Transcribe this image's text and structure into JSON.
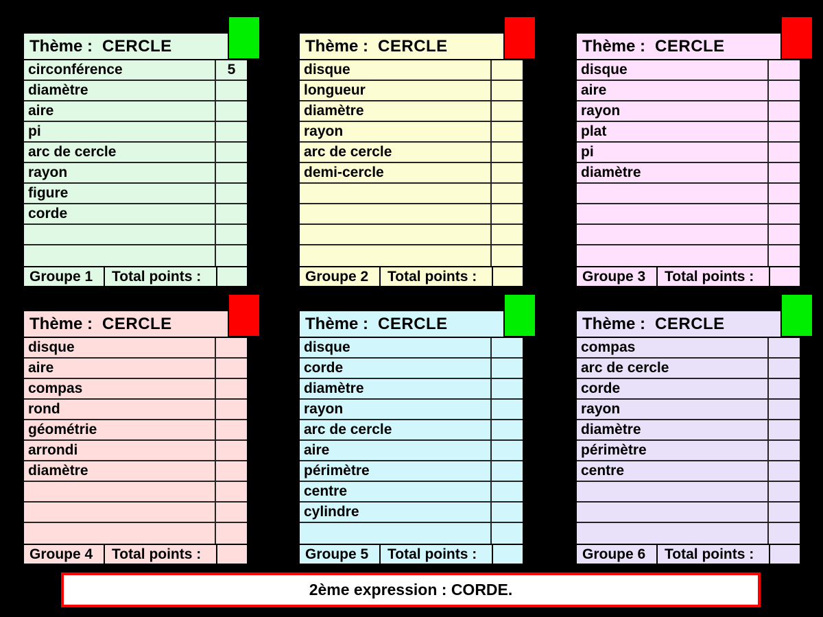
{
  "banner": {
    "text": "2ème expression : CORDE."
  },
  "colors": {
    "background": "#000000",
    "banner_bg": "#FFFFFF",
    "banner_border": "#FF0000",
    "green_indicator": "#00EE00",
    "red_indicator": "#FF0000"
  },
  "cards": [
    {
      "theme_label": "Thème :",
      "theme_value": "CERCLE",
      "group_label": "Groupe 1",
      "total_label": "Total points :",
      "total_value": "",
      "indicator": "green",
      "bg": "#E0F9E4",
      "rows": [
        {
          "word": "circonférence",
          "points": "5"
        },
        {
          "word": "diamètre",
          "points": ""
        },
        {
          "word": "aire",
          "points": ""
        },
        {
          "word": "pi",
          "points": ""
        },
        {
          "word": "arc de cercle",
          "points": ""
        },
        {
          "word": "rayon",
          "points": ""
        },
        {
          "word": "figure",
          "points": ""
        },
        {
          "word": "corde",
          "points": ""
        },
        {
          "word": "",
          "points": ""
        },
        {
          "word": "",
          "points": ""
        }
      ]
    },
    {
      "theme_label": "Thème :",
      "theme_value": "CERCLE",
      "group_label": "Groupe 2",
      "total_label": "Total points :",
      "total_value": "",
      "indicator": "red",
      "bg": "#FDFDD4",
      "rows": [
        {
          "word": "disque",
          "points": ""
        },
        {
          "word": "longueur",
          "points": ""
        },
        {
          "word": "diamètre",
          "points": ""
        },
        {
          "word": "rayon",
          "points": ""
        },
        {
          "word": "arc de cercle",
          "points": ""
        },
        {
          "word": "demi-cercle",
          "points": ""
        },
        {
          "word": "",
          "points": ""
        },
        {
          "word": "",
          "points": ""
        },
        {
          "word": "",
          "points": ""
        },
        {
          "word": "",
          "points": ""
        }
      ]
    },
    {
      "theme_label": "Thème :",
      "theme_value": "CERCLE",
      "group_label": "Groupe 3",
      "total_label": "Total points :",
      "total_value": "",
      "indicator": "red",
      "bg": "#FFE0FD",
      "rows": [
        {
          "word": "disque",
          "points": ""
        },
        {
          "word": "aire",
          "points": ""
        },
        {
          "word": "rayon",
          "points": ""
        },
        {
          "word": "plat",
          "points": ""
        },
        {
          "word": "pi",
          "points": ""
        },
        {
          "word": "diamètre",
          "points": ""
        },
        {
          "word": "",
          "points": ""
        },
        {
          "word": "",
          "points": ""
        },
        {
          "word": "",
          "points": ""
        },
        {
          "word": "",
          "points": ""
        }
      ]
    },
    {
      "theme_label": "Thème :",
      "theme_value": "CERCLE",
      "group_label": "Groupe 4",
      "total_label": "Total points :",
      "total_value": "",
      "indicator": "red",
      "bg": "#FFDDDD",
      "rows": [
        {
          "word": "disque",
          "points": ""
        },
        {
          "word": "aire",
          "points": ""
        },
        {
          "word": "compas",
          "points": ""
        },
        {
          "word": "rond",
          "points": ""
        },
        {
          "word": "géométrie",
          "points": ""
        },
        {
          "word": "arrondi",
          "points": ""
        },
        {
          "word": "diamètre",
          "points": ""
        },
        {
          "word": "",
          "points": ""
        },
        {
          "word": "",
          "points": ""
        },
        {
          "word": "",
          "points": ""
        }
      ]
    },
    {
      "theme_label": "Thème :",
      "theme_value": "CERCLE",
      "group_label": "Groupe 5",
      "total_label": "Total points :",
      "total_value": "",
      "indicator": "green",
      "bg": "#D1F7FC",
      "rows": [
        {
          "word": "disque",
          "points": ""
        },
        {
          "word": "corde",
          "points": ""
        },
        {
          "word": "diamètre",
          "points": ""
        },
        {
          "word": "rayon",
          "points": ""
        },
        {
          "word": "arc de cercle",
          "points": ""
        },
        {
          "word": "aire",
          "points": ""
        },
        {
          "word": "périmètre",
          "points": ""
        },
        {
          "word": "centre",
          "points": ""
        },
        {
          "word": "cylindre",
          "points": ""
        },
        {
          "word": "",
          "points": ""
        }
      ]
    },
    {
      "theme_label": "Thème :",
      "theme_value": "CERCLE",
      "group_label": "Groupe 6",
      "total_label": "Total points :",
      "total_value": "",
      "indicator": "green",
      "bg": "#E9E1FA",
      "rows": [
        {
          "word": "compas",
          "points": ""
        },
        {
          "word": "arc de cercle",
          "points": ""
        },
        {
          "word": "corde",
          "points": ""
        },
        {
          "word": "rayon",
          "points": ""
        },
        {
          "word": "diamètre",
          "points": ""
        },
        {
          "word": "périmètre",
          "points": ""
        },
        {
          "word": "centre",
          "points": ""
        },
        {
          "word": "",
          "points": ""
        },
        {
          "word": "",
          "points": ""
        },
        {
          "word": "",
          "points": ""
        }
      ]
    }
  ]
}
